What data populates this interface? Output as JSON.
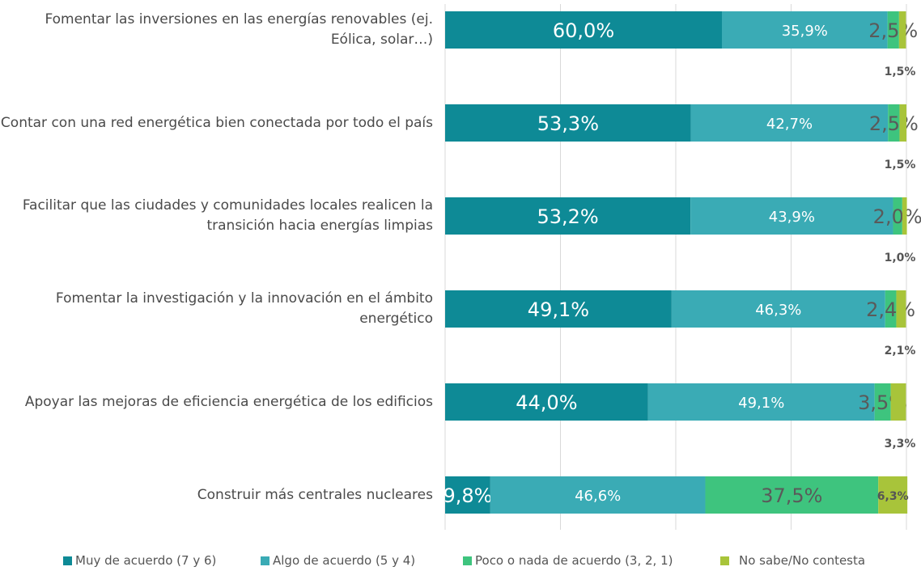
{
  "chart_data": {
    "type": "stacked_bar_horizontal",
    "categories": [
      "Fomentar las inversiones en las energías renovables (ej. Eólica, solar…)",
      "Contar con una red energética bien conectada por todo el país",
      "Facilitar que las ciudades y comunidades locales realicen la transición hacia energías limpias",
      "Fomentar la investigación y la innovación en el ámbito energético",
      "Apoyar las mejoras de eficiencia energética de los edificios",
      "Construir más centrales nucleares"
    ],
    "series": [
      {
        "name": "Muy de acuerdo (7 y 6)",
        "color": "#0e8a96",
        "values": [
          60.0,
          53.3,
          53.2,
          49.1,
          44.0,
          9.8
        ],
        "value_labels": [
          "60,0%",
          "53,3%",
          "53,2%",
          "49,1%",
          "44,0%",
          "9,8%"
        ]
      },
      {
        "name": "Algo de acuerdo (5 y 4)",
        "color": "#3aabb5",
        "values": [
          35.9,
          42.7,
          43.9,
          46.3,
          49.1,
          46.6
        ],
        "value_labels": [
          "35,9%",
          "42,7%",
          "43,9%",
          "46,3%",
          "49,1%",
          "46,6%"
        ]
      },
      {
        "name": "Poco o nada de acuerdo (3, 2, 1)",
        "color": "#3ec47e",
        "values": [
          2.5,
          2.5,
          2.0,
          2.4,
          3.5,
          37.5
        ],
        "value_labels": [
          "2,5%",
          "2,5%",
          "2,0%",
          "2,4%",
          "3,5%",
          "37,5%"
        ]
      },
      {
        "name": "No sabe/No contesta",
        "color": "#a8c43a",
        "values": [
          1.5,
          1.5,
          1.0,
          2.1,
          3.3,
          6.3
        ],
        "value_labels": [
          "1,5%",
          "1,5%",
          "1,0%",
          "2,1%",
          "3,3%",
          "6,3%"
        ]
      }
    ],
    "xlim": [
      0,
      100
    ],
    "xticks": [
      0,
      25,
      50,
      75,
      100
    ],
    "grid": true
  }
}
